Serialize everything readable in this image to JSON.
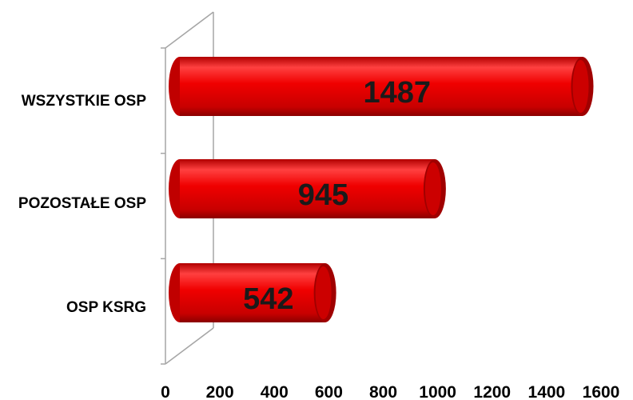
{
  "chart_data": {
    "type": "bar",
    "orientation": "horizontal",
    "style": "3d-cylinder",
    "categories": [
      "WSZYSTKIE OSP",
      "POZOSTAŁE OSP",
      "OSP KSRG"
    ],
    "values": [
      1487,
      945,
      542
    ],
    "data_labels": [
      "1487",
      "945",
      "542"
    ],
    "x_ticks": [
      "0",
      "200",
      "400",
      "600",
      "800",
      "1000",
      "1200",
      "1400",
      "1600"
    ],
    "xlim": [
      0,
      1600
    ],
    "grid": false,
    "legend": "none",
    "title": "",
    "xlabel": "",
    "ylabel": "",
    "colors": {
      "bar": "#e00000",
      "bar_dark": "#a00000",
      "bar_light": "#ff5a5a",
      "axis": "#a6a6a6"
    }
  }
}
